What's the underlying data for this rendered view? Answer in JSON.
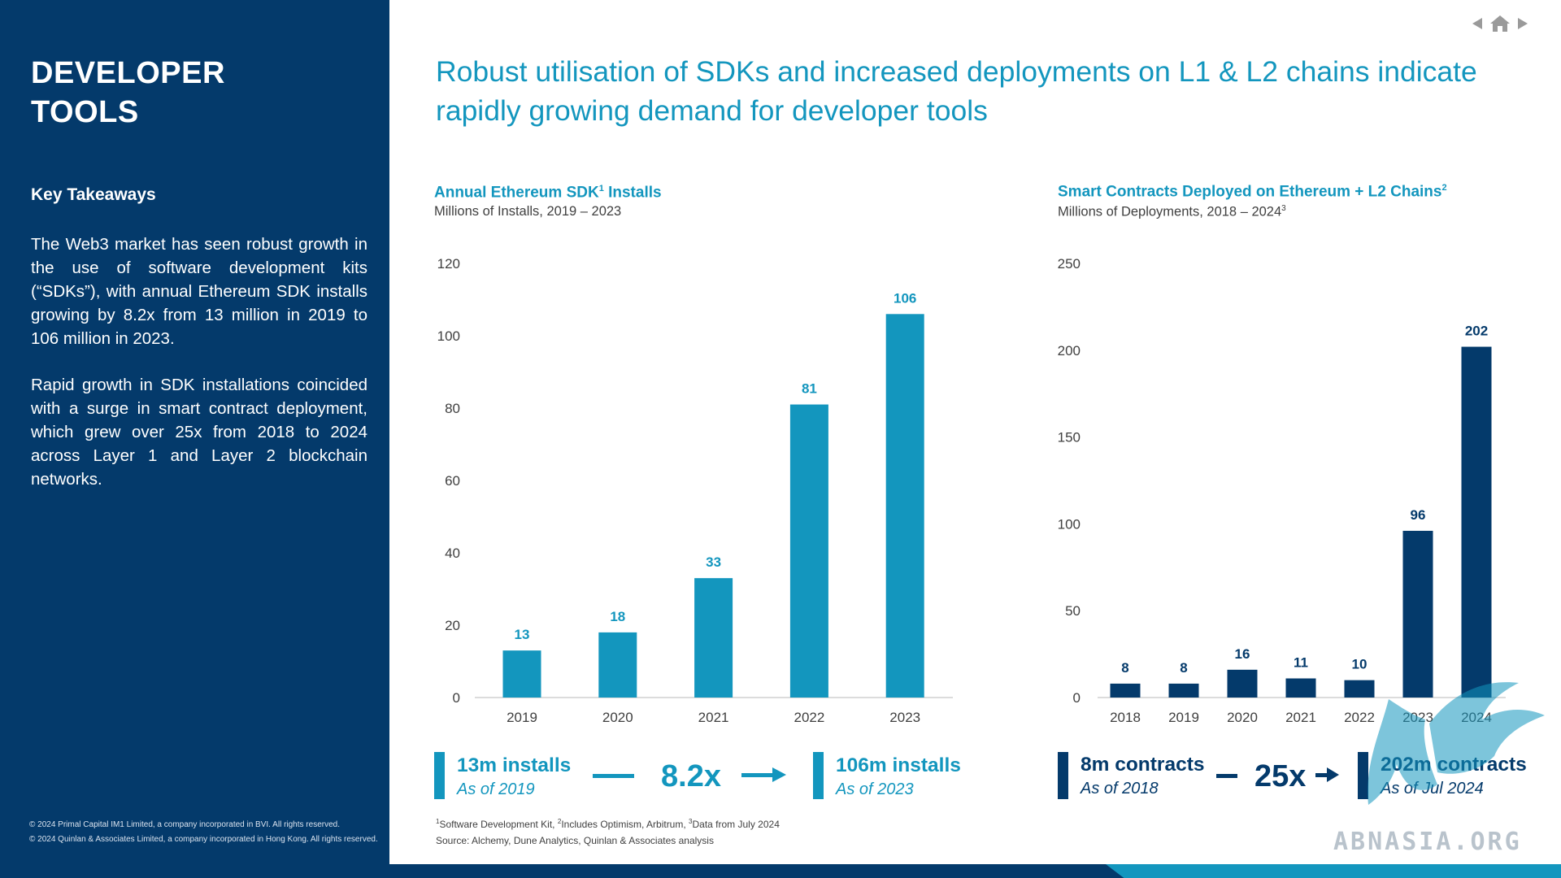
{
  "sidebar": {
    "title_line1": "DEVELOPER",
    "title_line2": "TOOLS",
    "key_takeaways_heading": "Key Takeaways",
    "paragraph1": "The Web3 market has seen robust growth in the use of software development kits (“SDKs”), with annual Ethereum SDK installs growing by 8.2x from 13 million in 2019 to 106 million in 2023.",
    "paragraph2": "Rapid growth in SDK installations coincided with a surge in smart contract deployment, which grew over 25x from 2018 to 2024 across Layer 1 and Layer 2 blockchain networks.",
    "copyright1": "© 2024 Primal Capital IM1 Limited, a company incorporated in BVI. All rights reserved.",
    "copyright2": "© 2024 Quinlan & Associates Limited, a company incorporated in Hong Kong. All rights reserved."
  },
  "nav": {
    "prev_icon": "triangle-left-icon",
    "home_icon": "home-icon",
    "next_icon": "triangle-right-icon"
  },
  "headline": "Robust utilisation of SDKs and increased deployments on L1 & L2 chains indicate rapidly growing demand for developer tools",
  "colors": {
    "sidebar": "#043A6B",
    "teal": "#1396BE",
    "navy": "#043A6B"
  },
  "chart_data": [
    {
      "type": "bar",
      "title": "Annual Ethereum SDK",
      "title_sup": "1",
      "title_suffix": " Installs",
      "subtitle": "Millions of Installs, 2019 – 2023",
      "categories": [
        "2019",
        "2020",
        "2021",
        "2022",
        "2023"
      ],
      "values": [
        13,
        18,
        33,
        81,
        106
      ],
      "ylim": [
        0,
        120
      ],
      "yticks": [
        0,
        20,
        40,
        60,
        80,
        100,
        120
      ],
      "color": "#1396BE",
      "grid": false
    },
    {
      "type": "bar",
      "title": "Smart Contracts Deployed on Ethereum + L2 Chains",
      "title_sup": "2",
      "subtitle": "Millions of Deployments, 2018 – 2024",
      "subtitle_sup": "3",
      "categories": [
        "2018",
        "2019",
        "2020",
        "2021",
        "2022",
        "2023",
        "2024"
      ],
      "values": [
        8,
        8,
        16,
        11,
        10,
        96,
        202
      ],
      "ylim": [
        0,
        250
      ],
      "yticks": [
        0,
        50,
        100,
        150,
        200,
        250
      ],
      "color": "#043A6B",
      "grid": false
    }
  ],
  "summary1": {
    "left_main": "13m installs",
    "left_sub": "As of 2019",
    "multiplier": "8.2x",
    "right_main": "106m installs",
    "right_sub": "As of 2023"
  },
  "summary2": {
    "left_main": "8m contracts",
    "left_sub": "As of 2018",
    "multiplier": "25x",
    "right_main": "202m contracts",
    "right_sub": "As of Jul 2024"
  },
  "footnotes": {
    "fn_a_sup": "1",
    "fn_a": "Software Development Kit, ",
    "fn_b_sup": "2",
    "fn_b": "Includes Optimism, Arbitrum, ",
    "fn_c_sup": "3",
    "fn_c": "Data from July 2024",
    "source": "Source: Alchemy, Dune Analytics, Quinlan & Associates analysis"
  },
  "watermark": "ABNASIA.ORG"
}
